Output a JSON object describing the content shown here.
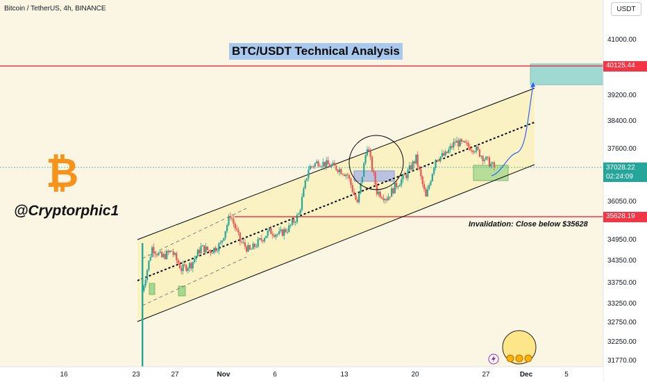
{
  "header": {
    "symbol_line": "Bitcoin / TetherUS, 4h, BINANCE",
    "currency_button": "USDT"
  },
  "annotations": {
    "title": "BTC/USDT Technical Analysis",
    "handle": "@Cryptorphic1",
    "invalidation": "Invalidation: Close below $35628",
    "logo_icon": "bitcoin-icon"
  },
  "price_labels": {
    "resistance": "40125.44",
    "current": "37028.22",
    "countdown": "02:24:09",
    "support": "35628.19"
  },
  "colors": {
    "background": "#fbf6e3",
    "channel_fill": "#faf0b8",
    "bull": "#26a69a",
    "bear": "#ef5350",
    "resistance_line": "#f23645",
    "target_box": "#9fd9d2",
    "entry_box": "#a5d88f",
    "bitcoin": "#f7931a",
    "projection": "#2962ff"
  },
  "chart_data": {
    "type": "candlestick",
    "title": "BTC/USDT Technical Analysis",
    "y_axis": {
      "ticks": [
        "41000.00",
        "39200.00",
        "38400.00",
        "37600.00",
        "36050.00",
        "34950.00",
        "34350.00",
        "33750.00",
        "33250.00",
        "32750.00",
        "32250.00",
        "31770.00"
      ]
    },
    "x_axis": {
      "ticks": [
        "16",
        "23",
        "27",
        "Nov",
        "6",
        "13",
        "20",
        "27",
        "Dec",
        "5"
      ]
    },
    "levels": {
      "resistance": 40125.44,
      "current_price": 37028.22,
      "invalidation": 35628.19
    },
    "price_path": [
      [
        "Oct 23",
        33300
      ],
      [
        "Oct 24",
        34600
      ],
      [
        "Oct 25",
        34300
      ],
      [
        "Oct 26",
        34500
      ],
      [
        "Oct 27",
        33950
      ],
      [
        "Oct 28",
        34100
      ],
      [
        "Oct 29",
        34600
      ],
      [
        "Oct 30",
        34500
      ],
      [
        "Oct 31",
        34700
      ],
      [
        "Nov 1",
        35600
      ],
      [
        "Nov 2",
        34800
      ],
      [
        "Nov 3",
        34500
      ],
      [
        "Nov 4",
        34800
      ],
      [
        "Nov 5",
        35100
      ],
      [
        "Nov 6",
        35000
      ],
      [
        "Nov 7",
        35200
      ],
      [
        "Nov 8",
        35600
      ],
      [
        "Nov 9",
        37000
      ],
      [
        "Nov 10",
        37200
      ],
      [
        "Nov 11",
        37100
      ],
      [
        "Nov 12",
        37000
      ],
      [
        "Nov 13",
        36800
      ],
      [
        "Nov 14",
        35900
      ],
      [
        "Nov 15",
        37700
      ],
      [
        "Nov 16",
        36300
      ],
      [
        "Nov 17",
        36100
      ],
      [
        "Nov 18",
        36500
      ],
      [
        "Nov 19",
        36800
      ],
      [
        "Nov 20",
        37300
      ],
      [
        "Nov 21",
        36100
      ],
      [
        "Nov 22",
        37300
      ],
      [
        "Nov 23",
        37400
      ],
      [
        "Nov 24",
        37800
      ],
      [
        "Nov 25",
        37700
      ],
      [
        "Nov 26",
        37600
      ],
      [
        "Nov 27",
        37300
      ],
      [
        "Nov 28",
        37028
      ]
    ],
    "projection": "from 37028 toward 40125 near Dec 2"
  }
}
